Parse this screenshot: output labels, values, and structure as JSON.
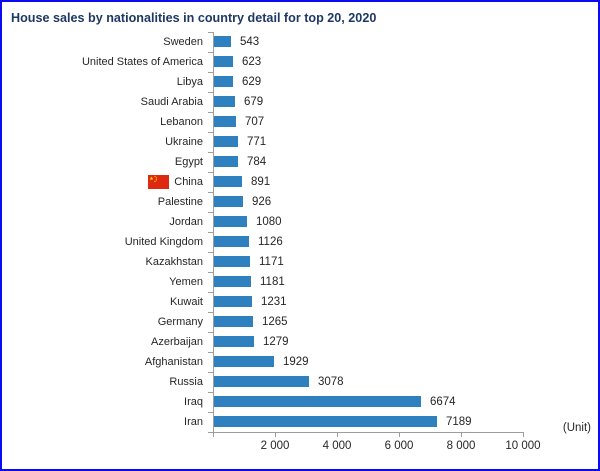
{
  "title": "House sales by nationalities in country detail for top 20, 2020",
  "unit_label": "(Unit)",
  "colors": {
    "bar": "#2e80bf",
    "title_text": "#1f3864",
    "axis": "#9e9e9e",
    "label_text": "#262626",
    "frame_border": "#0b0bf0",
    "flag_red": "#de2910",
    "flag_yellow": "#ffde00"
  },
  "chart_data": {
    "type": "bar",
    "orientation": "horizontal",
    "title": "House sales by nationalities in country detail for top 20, 2020",
    "categories": [
      "Sweden",
      "United States of America",
      "Libya",
      "Saudi Arabia",
      "Lebanon",
      "Ukraine",
      "Egypt",
      "China",
      "Palestine",
      "Jordan",
      "United Kingdom",
      "Kazakhstan",
      "Yemen",
      "Kuwait",
      "Germany",
      "Azerbaijan",
      "Afghanistan",
      "Russia",
      "Iraq",
      "Iran"
    ],
    "values": [
      543,
      623,
      629,
      679,
      707,
      771,
      784,
      891,
      926,
      1080,
      1126,
      1171,
      1181,
      1231,
      1265,
      1279,
      1929,
      3078,
      6674,
      7189
    ],
    "value_labels": [
      "543",
      "623",
      "629",
      "679",
      "707",
      "771",
      "784",
      "891",
      "926",
      "1080",
      "1126",
      "1171",
      "1181",
      "1231",
      "1265",
      "1279",
      "1929",
      "3078",
      "6674",
      "7189"
    ],
    "xlabel": "(Unit)",
    "ylabel": "",
    "xlim": [
      0,
      10000
    ],
    "x_ticks": [
      0,
      2000,
      4000,
      6000,
      8000,
      10000
    ],
    "x_tick_labels": [
      "",
      "2 000",
      "4 000",
      "6 000",
      "8 000",
      "10 000"
    ],
    "flag_category": "China",
    "grid": false,
    "legend": false,
    "value_labels_shown": true
  }
}
